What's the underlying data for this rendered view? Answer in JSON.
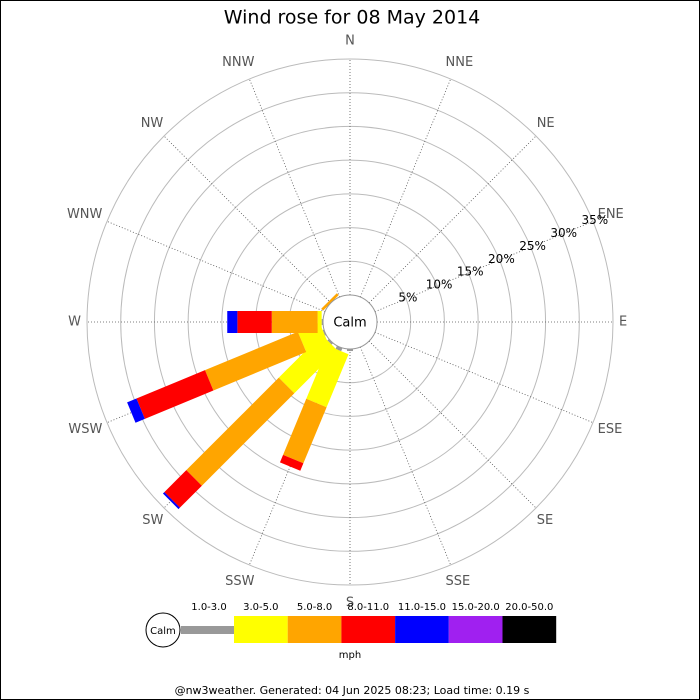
{
  "chart_data": {
    "type": "windrose",
    "title": "Wind rose for 08 May 2014",
    "directions": [
      "N",
      "NNE",
      "NE",
      "ENE",
      "E",
      "ESE",
      "SE",
      "SSE",
      "S",
      "SSW",
      "SW",
      "WSW",
      "W",
      "WNW",
      "NW",
      "NNW"
    ],
    "calm_label": "Calm",
    "unit": "mph",
    "rlim": [
      0,
      35
    ],
    "rticks": [
      {
        "value": 5,
        "label": "5%"
      },
      {
        "value": 10,
        "label": "10%"
      },
      {
        "value": 15,
        "label": "15%"
      },
      {
        "value": 20,
        "label": "20%"
      },
      {
        "value": 25,
        "label": "25%"
      },
      {
        "value": 30,
        "label": "30%"
      },
      {
        "value": 35,
        "label": "35%"
      }
    ],
    "series": [
      {
        "name": "1.0-3.0",
        "color": "#999999",
        "values": [
          0,
          0,
          0,
          0,
          0,
          0,
          0,
          0,
          0.3,
          0.5,
          0.3,
          0.2,
          0.2,
          0,
          0,
          0
        ]
      },
      {
        "name": "3.0-5.0",
        "color": "#ffff00",
        "values": [
          0,
          0,
          0,
          0,
          0,
          0,
          0,
          0,
          0,
          8.5,
          9,
          3.5,
          0.6,
          0,
          0,
          0
        ]
      },
      {
        "name": "5.0-8.0",
        "color": "#ffa500",
        "values": [
          0,
          0,
          0,
          0,
          0,
          0,
          0,
          0,
          0,
          9,
          19.4,
          14.9,
          6.8,
          0,
          0.4,
          0
        ]
      },
      {
        "name": "8.0-11.0",
        "color": "#ff0000",
        "values": [
          0,
          0,
          0,
          0,
          0,
          0,
          0,
          0,
          0,
          1.2,
          4.6,
          11,
          5.1,
          0,
          0,
          0
        ]
      },
      {
        "name": "11.0-15.0",
        "color": "#0000ff",
        "values": [
          0,
          0,
          0,
          0,
          0,
          0,
          0,
          0,
          0,
          0,
          0.3,
          1.5,
          1.5,
          0,
          0,
          0
        ]
      },
      {
        "name": "15.0-20.0",
        "color": "#a020f0",
        "values": [
          0,
          0,
          0,
          0,
          0,
          0,
          0,
          0,
          0,
          0,
          0,
          0,
          0,
          0,
          0,
          0
        ]
      },
      {
        "name": "20.0-50.0",
        "color": "#000000",
        "values": [
          0,
          0,
          0,
          0,
          0,
          0,
          0,
          0,
          0,
          0,
          0,
          0,
          0,
          0,
          0,
          0
        ]
      }
    ]
  },
  "footer": "@nw3weather. Generated: 04 Jun 2025 08:23; Load time: 0.19 s"
}
